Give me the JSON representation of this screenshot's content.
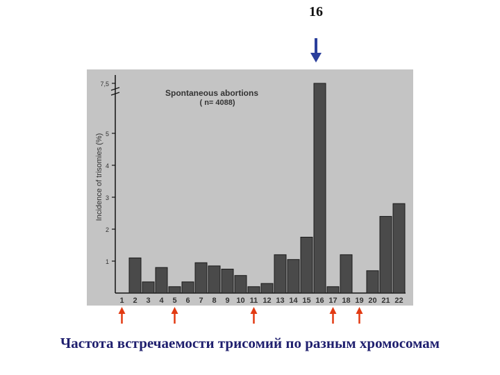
{
  "top_label": "16",
  "caption": "Частота встречаемости трисомий по разным хромосомам",
  "colors": {
    "plot_background": "#c4c4c4",
    "bar_fill": "#4a4a4a",
    "highlight_arrow": "#2b3f9c",
    "marker_arrows": "#e23a12"
  },
  "marked_chromosomes": [
    "1",
    "5",
    "11",
    "17",
    "19"
  ],
  "highlighted_chromosome": "16",
  "chart_data": {
    "type": "bar",
    "title": "Spontaneous abortions",
    "subtitle": "( n= 4088)",
    "xlabel": "",
    "ylabel": "Incidence of trisomies (%)",
    "ylim": [
      0,
      7.5
    ],
    "y_axis_break": true,
    "yticks": [
      "1",
      "2",
      "3",
      "4",
      "5",
      "7,5"
    ],
    "grid": false,
    "categories": [
      "1",
      "2",
      "3",
      "4",
      "5",
      "6",
      "7",
      "8",
      "9",
      "10",
      "11",
      "12",
      "13",
      "14",
      "15",
      "16",
      "17",
      "18",
      "19",
      "20",
      "21",
      "22"
    ],
    "values": [
      0,
      1.1,
      0.35,
      0.8,
      0.2,
      0.35,
      0.95,
      0.85,
      0.75,
      0.55,
      0.2,
      0.3,
      1.2,
      1.05,
      1.75,
      7.5,
      0.2,
      1.2,
      0,
      0.7,
      2.4,
      2.8
    ]
  }
}
